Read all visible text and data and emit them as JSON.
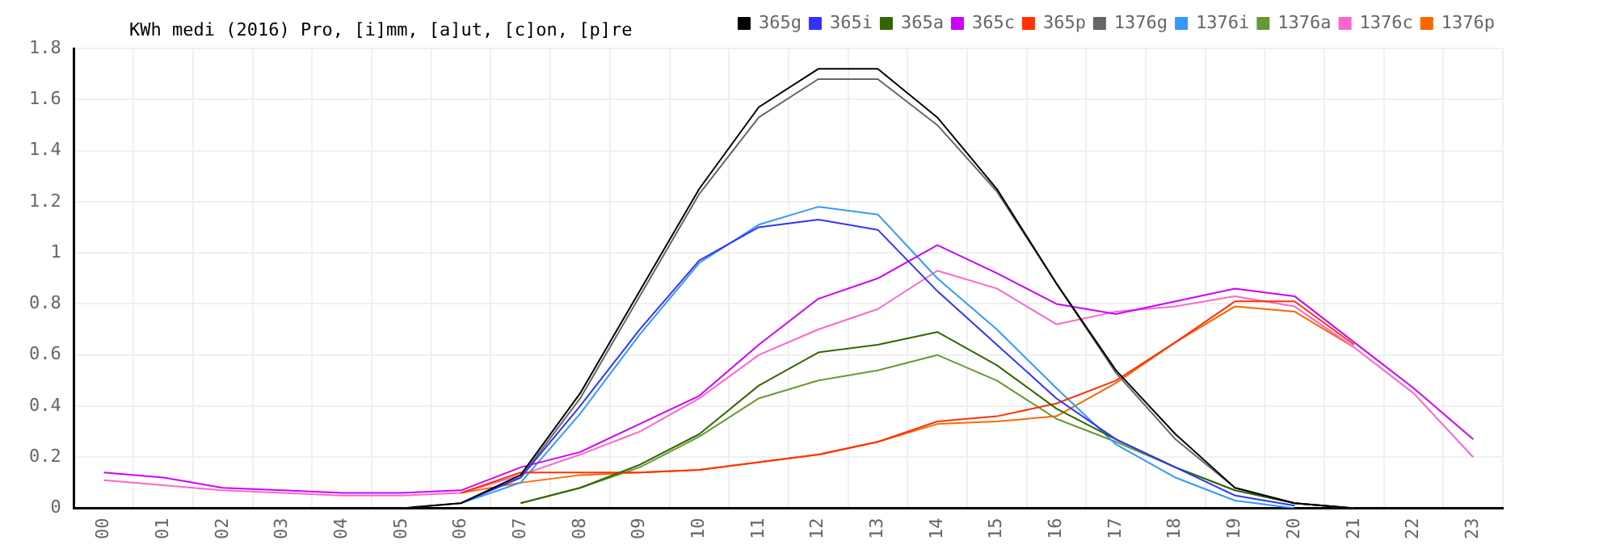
{
  "chart_data": {
    "type": "line",
    "title": "KWh medi (2016) Pro, [i]mm, [a]ut, [c]on, [p]re",
    "categories": [
      "00",
      "01",
      "02",
      "03",
      "04",
      "05",
      "06",
      "07",
      "08",
      "09",
      "10",
      "11",
      "12",
      "13",
      "14",
      "15",
      "16",
      "17",
      "18",
      "19",
      "20",
      "21",
      "22",
      "23"
    ],
    "series": [
      {
        "name": "365g",
        "color": "#000000",
        "values": [
          null,
          null,
          null,
          null,
          null,
          0,
          0.02,
          0.13,
          0.45,
          0.85,
          1.25,
          1.57,
          1.72,
          1.72,
          1.53,
          1.25,
          0.88,
          0.54,
          0.29,
          0.08,
          0.02,
          0,
          null,
          null
        ]
      },
      {
        "name": "365i",
        "color": "#3333ff",
        "values": [
          null,
          null,
          null,
          null,
          null,
          null,
          0.02,
          0.12,
          0.4,
          0.7,
          0.97,
          1.1,
          1.13,
          1.09,
          0.85,
          0.64,
          0.43,
          0.27,
          0.16,
          0.05,
          0.01,
          null,
          null,
          null
        ]
      },
      {
        "name": "365a",
        "color": "#336600",
        "values": [
          null,
          null,
          null,
          null,
          null,
          null,
          null,
          0.02,
          0.08,
          0.17,
          0.29,
          0.48,
          0.61,
          0.64,
          0.69,
          0.56,
          0.39,
          0.27,
          0.16,
          0.07,
          0.02,
          0,
          null,
          null
        ]
      },
      {
        "name": "365c",
        "color": "#cc00ff",
        "values": [
          0.14,
          0.12,
          0.08,
          0.07,
          0.06,
          0.06,
          0.07,
          0.16,
          0.22,
          0.33,
          0.44,
          0.64,
          0.82,
          0.9,
          1.03,
          0.92,
          0.8,
          0.76,
          0.81,
          0.86,
          0.83,
          0.65,
          0.47,
          0.27
        ]
      },
      {
        "name": "365p",
        "color": "#ff3300",
        "values": [
          null,
          null,
          null,
          null,
          null,
          null,
          0.06,
          0.14,
          0.14,
          0.14,
          0.15,
          0.18,
          0.21,
          0.26,
          0.34,
          0.36,
          0.41,
          0.5,
          0.65,
          0.81,
          0.81,
          0.64,
          null,
          null
        ]
      },
      {
        "name": "1376g",
        "color": "#666666",
        "values": [
          null,
          null,
          null,
          null,
          null,
          0,
          0.02,
          0.12,
          0.43,
          0.83,
          1.23,
          1.53,
          1.68,
          1.68,
          1.5,
          1.24,
          0.88,
          0.53,
          0.27,
          0.08,
          0.02,
          0,
          null,
          null
        ]
      },
      {
        "name": "1376i",
        "color": "#3399ff",
        "values": [
          null,
          null,
          null,
          null,
          null,
          null,
          0.02,
          0.1,
          0.37,
          0.68,
          0.96,
          1.11,
          1.18,
          1.15,
          0.9,
          0.7,
          0.47,
          0.25,
          0.12,
          0.03,
          0,
          null,
          null,
          null
        ]
      },
      {
        "name": "1376a",
        "color": "#669933",
        "values": [
          null,
          null,
          null,
          null,
          null,
          null,
          null,
          0.02,
          0.08,
          0.16,
          0.28,
          0.43,
          0.5,
          0.54,
          0.6,
          0.5,
          0.35,
          0.26,
          0.16,
          0.07,
          0.02,
          0,
          null,
          null
        ]
      },
      {
        "name": "1376c",
        "color": "#ff66cc",
        "values": [
          0.11,
          0.09,
          0.07,
          0.06,
          0.05,
          0.05,
          0.06,
          0.13,
          0.21,
          0.3,
          0.43,
          0.6,
          0.7,
          0.78,
          0.93,
          0.86,
          0.72,
          0.77,
          0.79,
          0.83,
          0.79,
          0.63,
          0.45,
          0.2
        ]
      },
      {
        "name": "1376p",
        "color": "#ff6600",
        "values": [
          null,
          null,
          null,
          null,
          null,
          null,
          0.06,
          0.1,
          0.13,
          0.14,
          0.15,
          0.18,
          0.21,
          0.26,
          0.33,
          0.34,
          0.36,
          0.49,
          0.65,
          0.79,
          0.77,
          0.63,
          null,
          null
        ]
      }
    ],
    "ylim": [
      0,
      1.8
    ],
    "yticks": [
      0,
      0.2,
      0.4,
      0.6,
      0.8,
      1,
      1.2,
      1.4,
      1.6,
      1.8
    ],
    "grid": true,
    "legend": "top right",
    "marker": "none",
    "line_style": "solid"
  }
}
